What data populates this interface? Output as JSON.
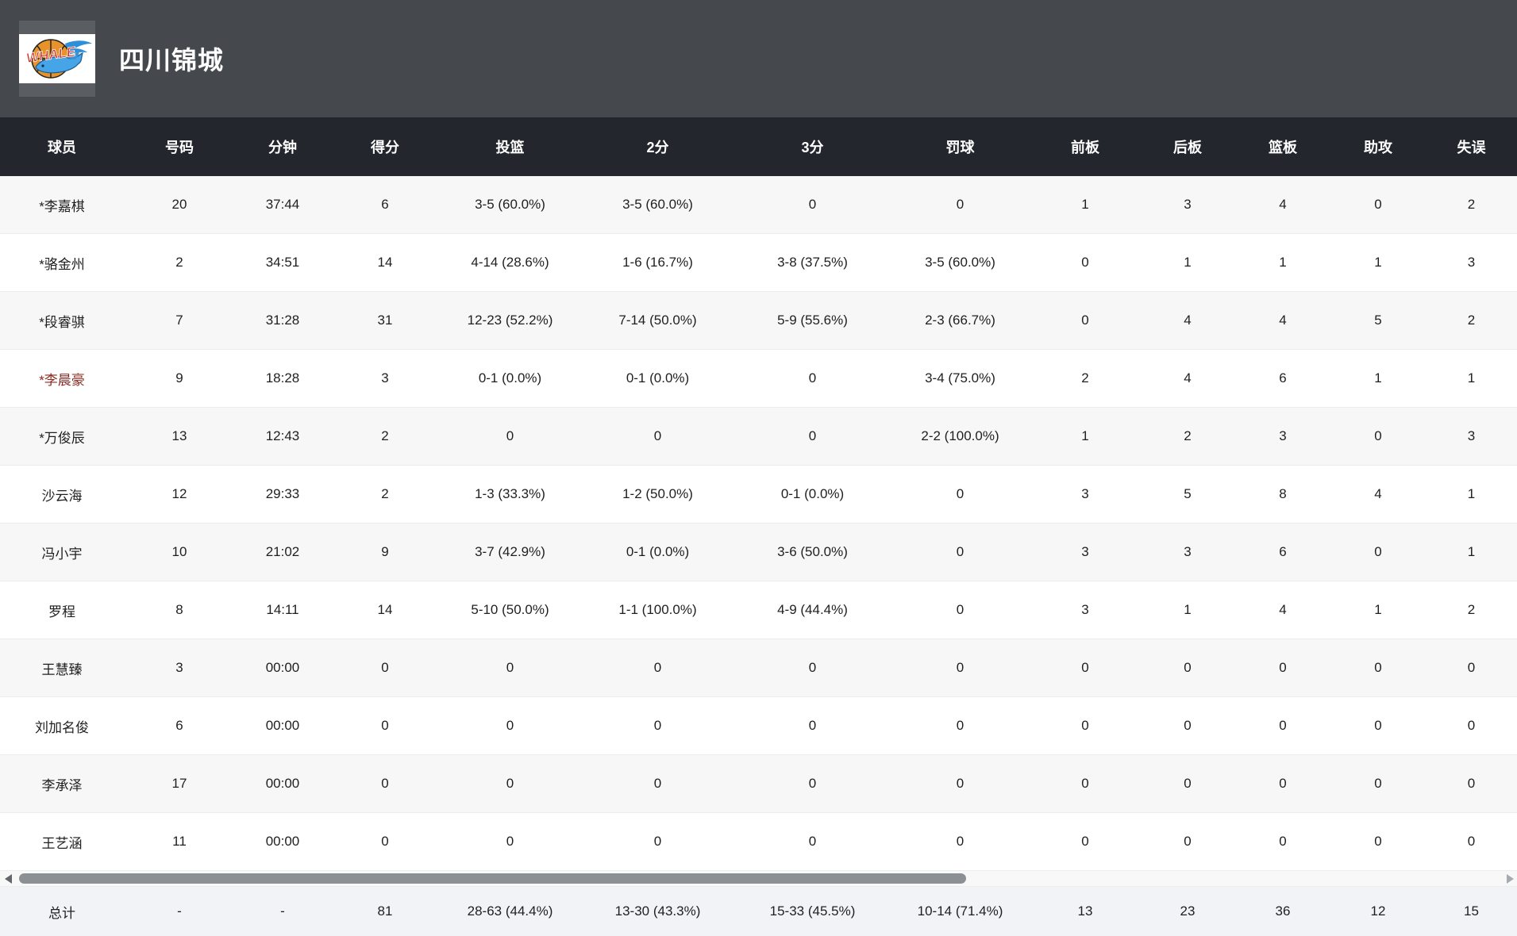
{
  "header": {
    "team_name": "四川锦城",
    "logo_text": "WHALE"
  },
  "table": {
    "columns": [
      "球员",
      "号码",
      "分钟",
      "得分",
      "投篮",
      "2分",
      "3分",
      "罚球",
      "前板",
      "后板",
      "篮板",
      "助攻",
      "失误"
    ],
    "rows": [
      {
        "highlight": false,
        "cells": [
          "*李嘉棋",
          "20",
          "37:44",
          "6",
          "3-5 (60.0%)",
          "3-5 (60.0%)",
          "0",
          "0",
          "1",
          "3",
          "4",
          "0",
          "2"
        ]
      },
      {
        "highlight": false,
        "cells": [
          "*骆金州",
          "2",
          "34:51",
          "14",
          "4-14 (28.6%)",
          "1-6 (16.7%)",
          "3-8 (37.5%)",
          "3-5 (60.0%)",
          "0",
          "1",
          "1",
          "1",
          "3"
        ]
      },
      {
        "highlight": false,
        "cells": [
          "*段睿骐",
          "7",
          "31:28",
          "31",
          "12-23 (52.2%)",
          "7-14 (50.0%)",
          "5-9 (55.6%)",
          "2-3 (66.7%)",
          "0",
          "4",
          "4",
          "5",
          "2"
        ]
      },
      {
        "highlight": true,
        "cells": [
          "*李晨豪",
          "9",
          "18:28",
          "3",
          "0-1 (0.0%)",
          "0-1 (0.0%)",
          "0",
          "3-4 (75.0%)",
          "2",
          "4",
          "6",
          "1",
          "1"
        ]
      },
      {
        "highlight": false,
        "cells": [
          "*万俊辰",
          "13",
          "12:43",
          "2",
          "0",
          "0",
          "0",
          "2-2 (100.0%)",
          "1",
          "2",
          "3",
          "0",
          "3"
        ]
      },
      {
        "highlight": false,
        "cells": [
          "沙云海",
          "12",
          "29:33",
          "2",
          "1-3 (33.3%)",
          "1-2 (50.0%)",
          "0-1 (0.0%)",
          "0",
          "3",
          "5",
          "8",
          "4",
          "1"
        ]
      },
      {
        "highlight": false,
        "cells": [
          "冯小宇",
          "10",
          "21:02",
          "9",
          "3-7 (42.9%)",
          "0-1 (0.0%)",
          "3-6 (50.0%)",
          "0",
          "3",
          "3",
          "6",
          "0",
          "1"
        ]
      },
      {
        "highlight": false,
        "cells": [
          "罗程",
          "8",
          "14:11",
          "14",
          "5-10 (50.0%)",
          "1-1 (100.0%)",
          "4-9 (44.4%)",
          "0",
          "3",
          "1",
          "4",
          "1",
          "2"
        ]
      },
      {
        "highlight": false,
        "cells": [
          "王慧臻",
          "3",
          "00:00",
          "0",
          "0",
          "0",
          "0",
          "0",
          "0",
          "0",
          "0",
          "0",
          "0"
        ]
      },
      {
        "highlight": false,
        "cells": [
          "刘加名俊",
          "6",
          "00:00",
          "0",
          "0",
          "0",
          "0",
          "0",
          "0",
          "0",
          "0",
          "0",
          "0"
        ]
      },
      {
        "highlight": false,
        "cells": [
          "李承泽",
          "17",
          "00:00",
          "0",
          "0",
          "0",
          "0",
          "0",
          "0",
          "0",
          "0",
          "0",
          "0"
        ]
      },
      {
        "highlight": false,
        "cells": [
          "王艺涵",
          "11",
          "00:00",
          "0",
          "0",
          "0",
          "0",
          "0",
          "0",
          "0",
          "0",
          "0",
          "0"
        ]
      }
    ],
    "totals": {
      "cells": [
        "总计",
        "-",
        "-",
        "81",
        "28-63 (44.4%)",
        "13-30 (43.3%)",
        "15-33 (45.5%)",
        "10-14 (71.4%)",
        "13",
        "23",
        "36",
        "12",
        "15"
      ]
    }
  },
  "colors": {
    "page_header_bg": "#45494e",
    "logo_box_bg": "#5a5e63",
    "table_head_bg": "#23272d",
    "row_alt_bg": "#f7f7f7",
    "row_bg": "#ffffff",
    "totals_bg": "#f2f3f6",
    "highlight_player": "#8b2a20",
    "scrollbar_thumb": "#8c9095"
  }
}
